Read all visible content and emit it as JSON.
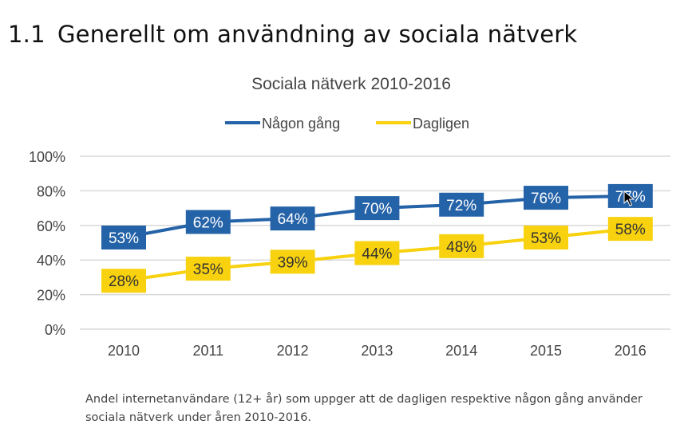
{
  "section": {
    "number": "1.1",
    "title": "Generellt om användning av sociala nätverk"
  },
  "caption": "Andel internetanvändare (12+ år) som uppger att de dagligen respektive någon gång använder sociala nätverk under åren 2010-2016.",
  "chart_data": {
    "type": "line",
    "title": "Sociala nätverk 2010-2016",
    "categories": [
      "2010",
      "2011",
      "2012",
      "2013",
      "2014",
      "2015",
      "2016"
    ],
    "series": [
      {
        "name": "Någon gång",
        "color": "#2563a8",
        "values": [
          53,
          62,
          64,
          70,
          72,
          76,
          77
        ],
        "labels": [
          "53%",
          "62%",
          "64%",
          "70%",
          "72%",
          "76%",
          "77%"
        ]
      },
      {
        "name": "Dagligen",
        "color": "#f8d20f",
        "values": [
          28,
          35,
          39,
          44,
          48,
          53,
          58
        ],
        "labels": [
          "28%",
          "35%",
          "39%",
          "44%",
          "48%",
          "53%",
          "58%"
        ]
      }
    ],
    "ylim": [
      0,
      100
    ],
    "yticks": [
      "0%",
      "20%",
      "40%",
      "60%",
      "80%",
      "100%"
    ],
    "xlabel": "",
    "ylabel": "",
    "grid": true,
    "legend": "top"
  },
  "cursor_icon": "arrow-pointer-icon"
}
